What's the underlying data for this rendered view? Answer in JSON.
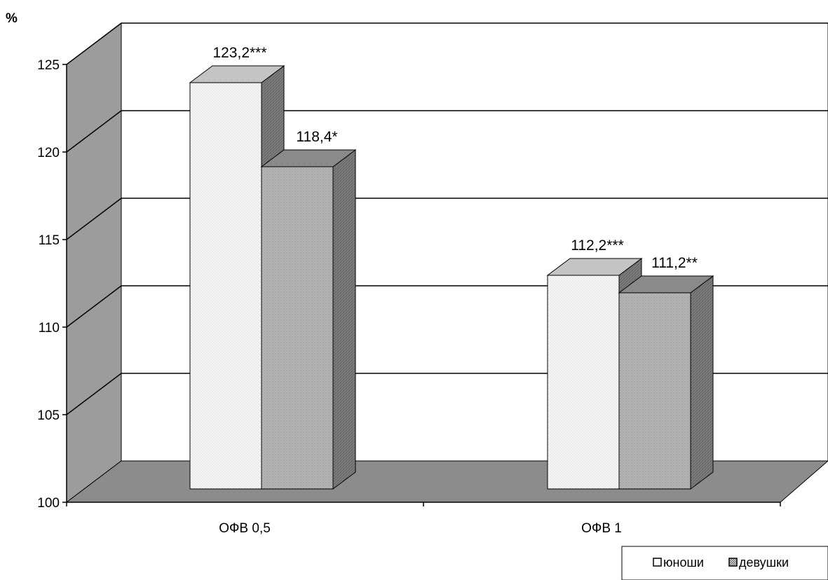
{
  "chart_data": {
    "type": "bar",
    "ylabel": "%",
    "ylim": [
      100,
      125
    ],
    "yticks": [
      100,
      105,
      110,
      115,
      120,
      125
    ],
    "categories": [
      "ОФВ 0,5",
      "ОФВ 1"
    ],
    "series": [
      {
        "name": "юноши",
        "values": [
          123.2,
          112.2
        ],
        "labels": [
          "123,2***",
          "112,2***"
        ]
      },
      {
        "name": "девушки",
        "values": [
          118.4,
          111.2
        ],
        "labels": [
          "118,4*",
          "111,2**"
        ]
      }
    ],
    "grid": true,
    "legend": "bottom-right",
    "colors": {
      "back_wall": "#ffffff",
      "floor": "#8c8c8c",
      "side_wall": "#9a9a9a",
      "series1_front": "#f4f4f4",
      "series2_front": "#b4b4b4"
    }
  }
}
